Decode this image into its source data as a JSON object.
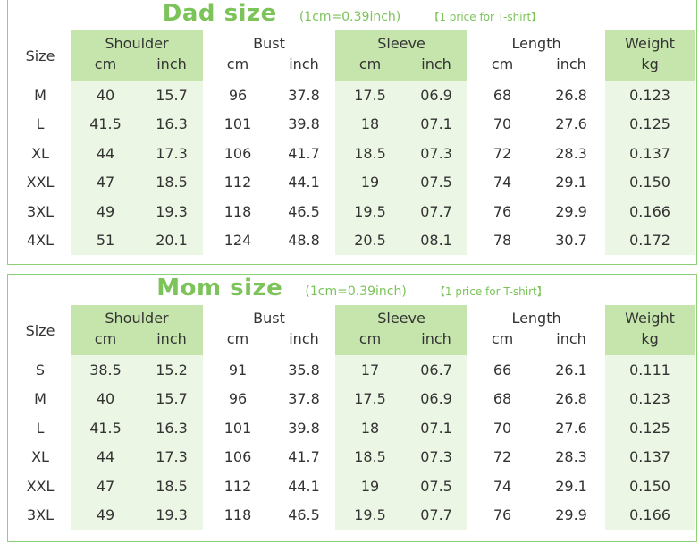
{
  "dad": {
    "title": "Dad size",
    "unit_note": "(1cm=0.39inch)",
    "price_note": "【1 price for T-shirt】",
    "headers": {
      "size": "Size",
      "shoulder": "Shoulder",
      "bust": "Bust",
      "sleeve": "Sleeve",
      "length": "Length",
      "weight": "Weight",
      "cm": "cm",
      "inch": "inch",
      "kg": "kg"
    },
    "rows": [
      [
        "M",
        "40",
        "15.7",
        "96",
        "37.8",
        "17.5",
        "06.9",
        "68",
        "26.8",
        "0.123"
      ],
      [
        "L",
        "41.5",
        "16.3",
        "101",
        "39.8",
        "18",
        "07.1",
        "70",
        "27.6",
        "0.125"
      ],
      [
        "XL",
        "44",
        "17.3",
        "106",
        "41.7",
        "18.5",
        "07.3",
        "72",
        "28.3",
        "0.137"
      ],
      [
        "XXL",
        "47",
        "18.5",
        "112",
        "44.1",
        "19",
        "07.5",
        "74",
        "29.1",
        "0.150"
      ],
      [
        "3XL",
        "49",
        "19.3",
        "118",
        "46.5",
        "19.5",
        "07.7",
        "76",
        "29.9",
        "0.166"
      ],
      [
        "4XL",
        "51",
        "20.1",
        "124",
        "48.8",
        "20.5",
        "08.1",
        "78",
        "30.7",
        "0.172"
      ]
    ]
  },
  "mom": {
    "title": "Mom size",
    "unit_note": "(1cm=0.39inch)",
    "price_note": "【1 price for T-shirt】",
    "headers": {
      "size": "Size",
      "shoulder": "Shoulder",
      "bust": "Bust",
      "sleeve": "Sleeve",
      "length": "Length",
      "weight": "Weight",
      "cm": "cm",
      "inch": "inch",
      "kg": "kg"
    },
    "rows": [
      [
        "S",
        "38.5",
        "15.2",
        "91",
        "35.8",
        "17",
        "06.7",
        "66",
        "26.1",
        "0.111"
      ],
      [
        "M",
        "40",
        "15.7",
        "96",
        "37.8",
        "17.5",
        "06.9",
        "68",
        "26.8",
        "0.123"
      ],
      [
        "L",
        "41.5",
        "16.3",
        "101",
        "39.8",
        "18",
        "07.1",
        "70",
        "27.6",
        "0.125"
      ],
      [
        "XL",
        "44",
        "17.3",
        "106",
        "41.7",
        "18.5",
        "07.3",
        "72",
        "28.3",
        "0.137"
      ],
      [
        "XXL",
        "47",
        "18.5",
        "112",
        "44.1",
        "19",
        "07.5",
        "74",
        "29.1",
        "0.150"
      ],
      [
        "3XL",
        "49",
        "19.3",
        "118",
        "46.5",
        "19.5",
        "07.7",
        "76",
        "29.9",
        "0.166"
      ]
    ]
  },
  "colors": {
    "accent_green": "#7cc35a",
    "header_green": "#c5e5ad",
    "border_green": "#8fd07a"
  }
}
